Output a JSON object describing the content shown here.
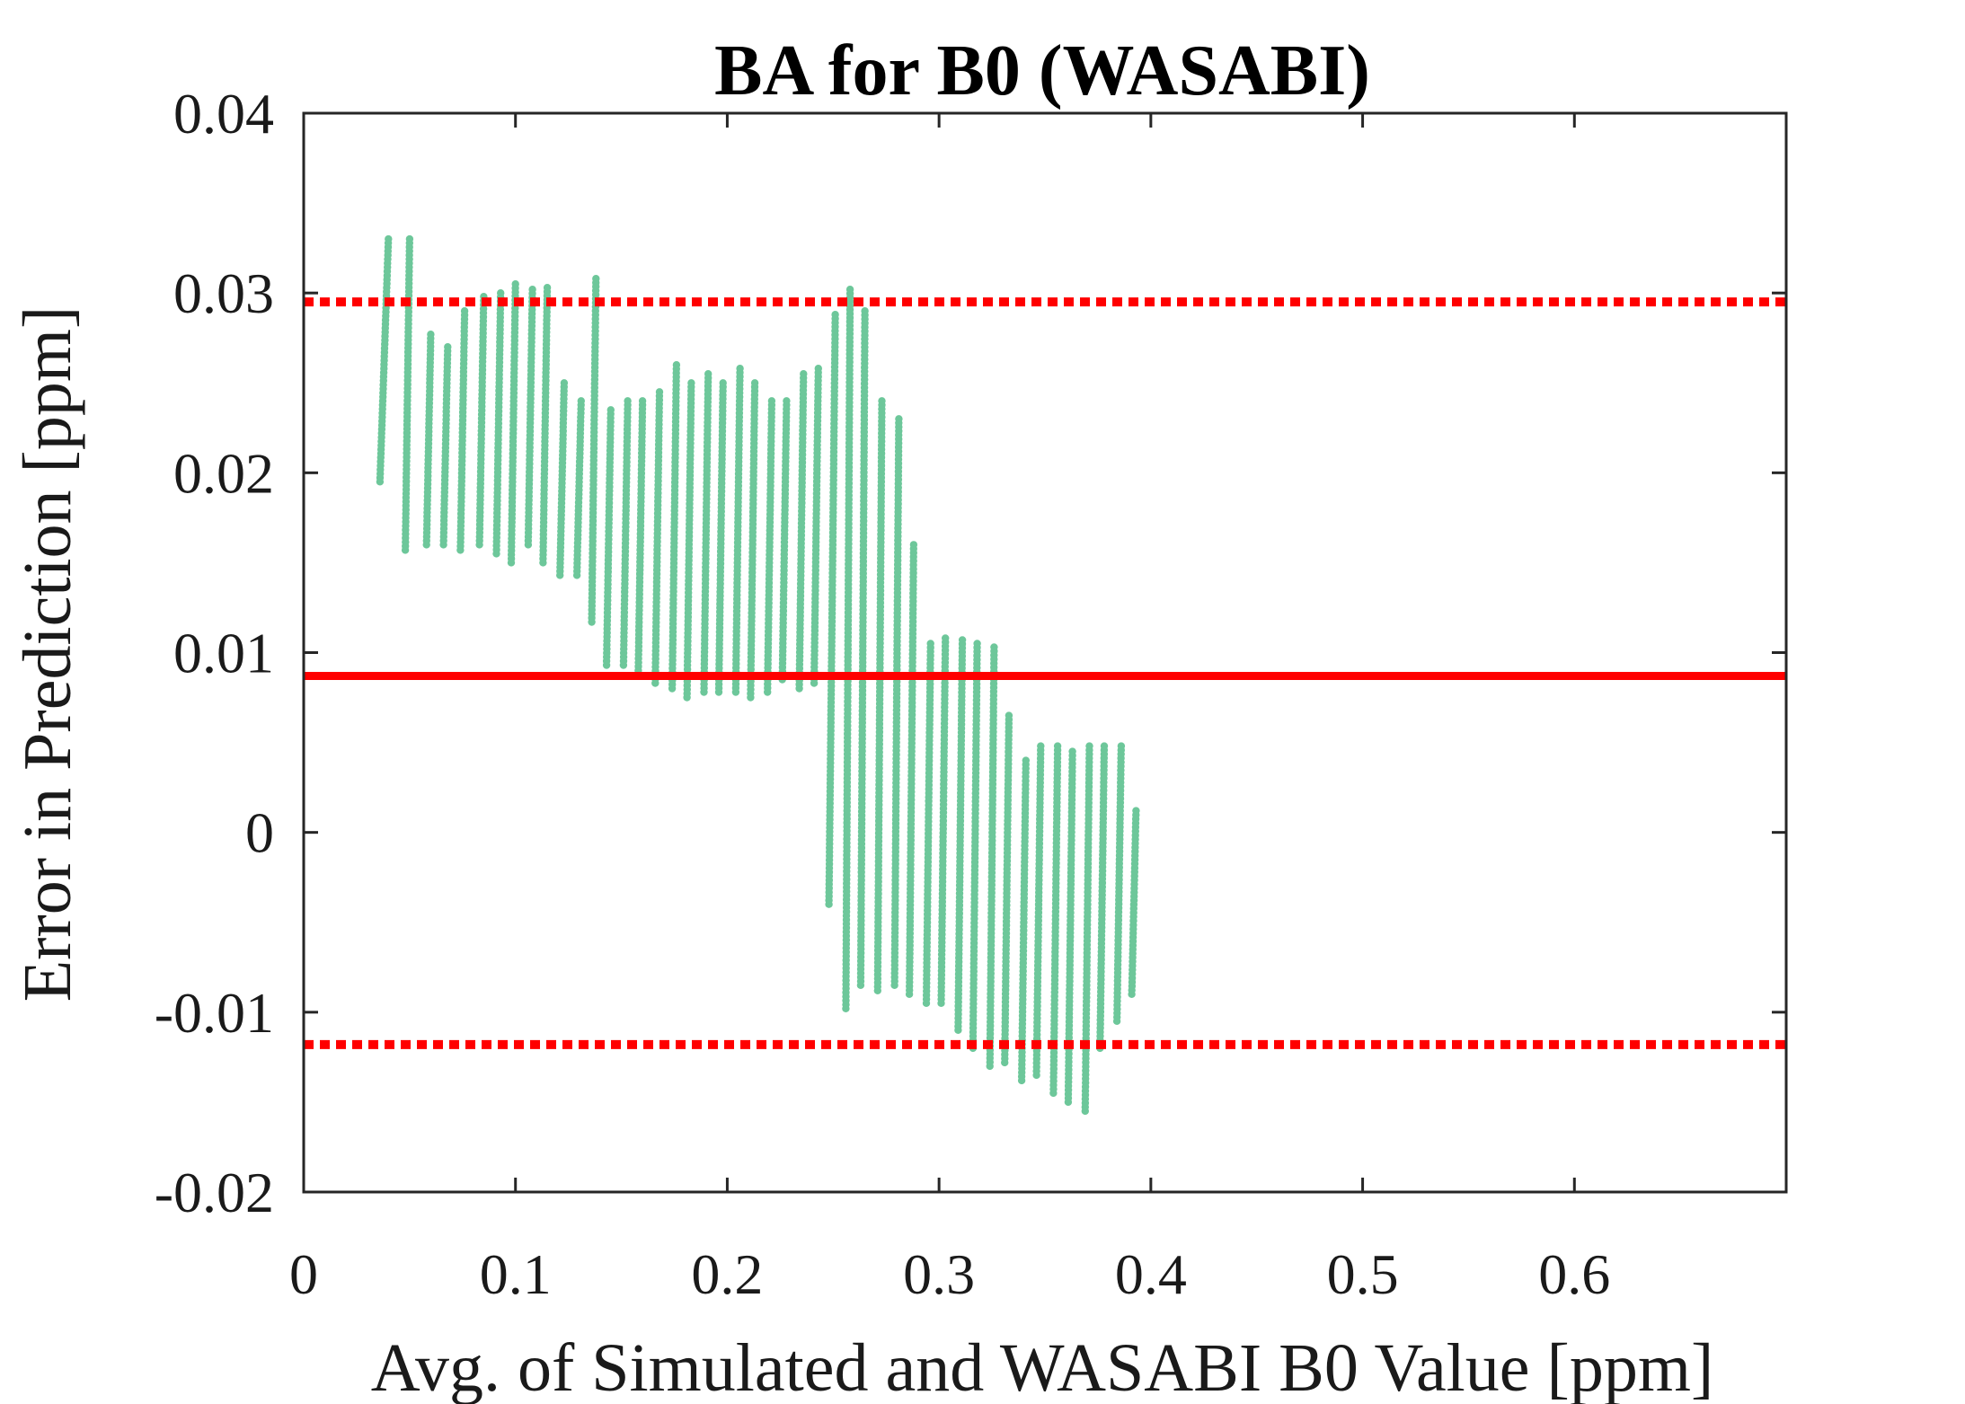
{
  "chart_data": {
    "type": "scatter",
    "title": "BA for B0 (WASABI)",
    "xlabel": "Avg. of Simulated and WASABI B0 Value [ppm]",
    "ylabel": "Error in Prediction [ppm]",
    "xlim": [
      0,
      0.7
    ],
    "ylim": [
      -0.02,
      0.04
    ],
    "xticks": [
      0,
      0.1,
      0.2,
      0.3,
      0.4,
      0.5,
      0.6
    ],
    "xtick_labels": [
      "0",
      "0.1",
      "0.2",
      "0.3",
      "0.4",
      "0.5",
      "0.6"
    ],
    "yticks": [
      -0.02,
      -0.01,
      0,
      0.01,
      0.02,
      0.03,
      0.04
    ],
    "ytick_labels": [
      "-0.02",
      "-0.01",
      "0",
      "0.01",
      "0.02",
      "0.03",
      "0.04"
    ],
    "grid": false,
    "point_color": "#6dc79a",
    "line_color": "#ff0000",
    "reference_lines": [
      {
        "role": "mean",
        "value": 0.0087,
        "style": "solid"
      },
      {
        "role": "upper-limit",
        "value": 0.0295,
        "style": "dotted"
      },
      {
        "role": "lower-limit",
        "value": -0.0118,
        "style": "dotted"
      }
    ],
    "point_columns": [
      {
        "x0": 0.036,
        "x1": 0.04,
        "y0": 0.0195,
        "y1": 0.033
      },
      {
        "x0": 0.048,
        "x1": 0.05,
        "y0": 0.0157,
        "y1": 0.033
      },
      {
        "x0": 0.058,
        "x1": 0.06,
        "y0": 0.016,
        "y1": 0.0277
      },
      {
        "x0": 0.066,
        "x1": 0.068,
        "y0": 0.016,
        "y1": 0.027
      },
      {
        "x0": 0.074,
        "x1": 0.076,
        "y0": 0.0157,
        "y1": 0.029
      },
      {
        "x0": 0.083,
        "x1": 0.085,
        "y0": 0.016,
        "y1": 0.0298
      },
      {
        "x0": 0.091,
        "x1": 0.093,
        "y0": 0.0155,
        "y1": 0.03
      },
      {
        "x0": 0.098,
        "x1": 0.1,
        "y0": 0.015,
        "y1": 0.0305
      },
      {
        "x0": 0.106,
        "x1": 0.108,
        "y0": 0.016,
        "y1": 0.0302
      },
      {
        "x0": 0.113,
        "x1": 0.115,
        "y0": 0.015,
        "y1": 0.0303
      },
      {
        "x0": 0.121,
        "x1": 0.123,
        "y0": 0.0143,
        "y1": 0.025
      },
      {
        "x0": 0.129,
        "x1": 0.131,
        "y0": 0.0143,
        "y1": 0.024
      },
      {
        "x0": 0.136,
        "x1": 0.138,
        "y0": 0.0117,
        "y1": 0.0308
      },
      {
        "x0": 0.143,
        "x1": 0.145,
        "y0": 0.0093,
        "y1": 0.0235
      },
      {
        "x0": 0.151,
        "x1": 0.153,
        "y0": 0.0093,
        "y1": 0.024
      },
      {
        "x0": 0.158,
        "x1": 0.16,
        "y0": 0.009,
        "y1": 0.024
      },
      {
        "x0": 0.166,
        "x1": 0.168,
        "y0": 0.0083,
        "y1": 0.0245
      },
      {
        "x0": 0.174,
        "x1": 0.176,
        "y0": 0.008,
        "y1": 0.026
      },
      {
        "x0": 0.181,
        "x1": 0.183,
        "y0": 0.0075,
        "y1": 0.025
      },
      {
        "x0": 0.189,
        "x1": 0.191,
        "y0": 0.0078,
        "y1": 0.0255
      },
      {
        "x0": 0.196,
        "x1": 0.198,
        "y0": 0.0078,
        "y1": 0.025
      },
      {
        "x0": 0.204,
        "x1": 0.206,
        "y0": 0.0078,
        "y1": 0.0258
      },
      {
        "x0": 0.211,
        "x1": 0.213,
        "y0": 0.0075,
        "y1": 0.025
      },
      {
        "x0": 0.219,
        "x1": 0.221,
        "y0": 0.0078,
        "y1": 0.024
      },
      {
        "x0": 0.226,
        "x1": 0.228,
        "y0": 0.0085,
        "y1": 0.024
      },
      {
        "x0": 0.234,
        "x1": 0.236,
        "y0": 0.008,
        "y1": 0.0255
      },
      {
        "x0": 0.241,
        "x1": 0.243,
        "y0": 0.0083,
        "y1": 0.0258
      },
      {
        "x0": 0.248,
        "x1": 0.251,
        "y0": -0.004,
        "y1": 0.0288
      },
      {
        "x0": 0.256,
        "x1": 0.258,
        "y0": -0.0098,
        "y1": 0.0302
      },
      {
        "x0": 0.263,
        "x1": 0.265,
        "y0": -0.0085,
        "y1": 0.029
      },
      {
        "x0": 0.271,
        "x1": 0.273,
        "y0": -0.0088,
        "y1": 0.024
      },
      {
        "x0": 0.279,
        "x1": 0.281,
        "y0": -0.0085,
        "y1": 0.023
      },
      {
        "x0": 0.286,
        "x1": 0.288,
        "y0": -0.009,
        "y1": 0.016
      },
      {
        "x0": 0.294,
        "x1": 0.296,
        "y0": -0.0095,
        "y1": 0.0105
      },
      {
        "x0": 0.301,
        "x1": 0.303,
        "y0": -0.0095,
        "y1": 0.0108
      },
      {
        "x0": 0.309,
        "x1": 0.311,
        "y0": -0.011,
        "y1": 0.0107
      },
      {
        "x0": 0.316,
        "x1": 0.318,
        "y0": -0.012,
        "y1": 0.0105
      },
      {
        "x0": 0.324,
        "x1": 0.326,
        "y0": -0.013,
        "y1": 0.0103
      },
      {
        "x0": 0.331,
        "x1": 0.333,
        "y0": -0.0128,
        "y1": 0.0065
      },
      {
        "x0": 0.339,
        "x1": 0.341,
        "y0": -0.0138,
        "y1": 0.004
      },
      {
        "x0": 0.346,
        "x1": 0.348,
        "y0": -0.0135,
        "y1": 0.0048
      },
      {
        "x0": 0.354,
        "x1": 0.356,
        "y0": -0.0145,
        "y1": 0.0048
      },
      {
        "x0": 0.361,
        "x1": 0.363,
        "y0": -0.015,
        "y1": 0.0045
      },
      {
        "x0": 0.369,
        "x1": 0.371,
        "y0": -0.0155,
        "y1": 0.0048
      },
      {
        "x0": 0.376,
        "x1": 0.378,
        "y0": -0.012,
        "y1": 0.0048
      },
      {
        "x0": 0.384,
        "x1": 0.386,
        "y0": -0.0105,
        "y1": 0.0048
      },
      {
        "x0": 0.391,
        "x1": 0.393,
        "y0": -0.009,
        "y1": 0.0012
      }
    ]
  }
}
